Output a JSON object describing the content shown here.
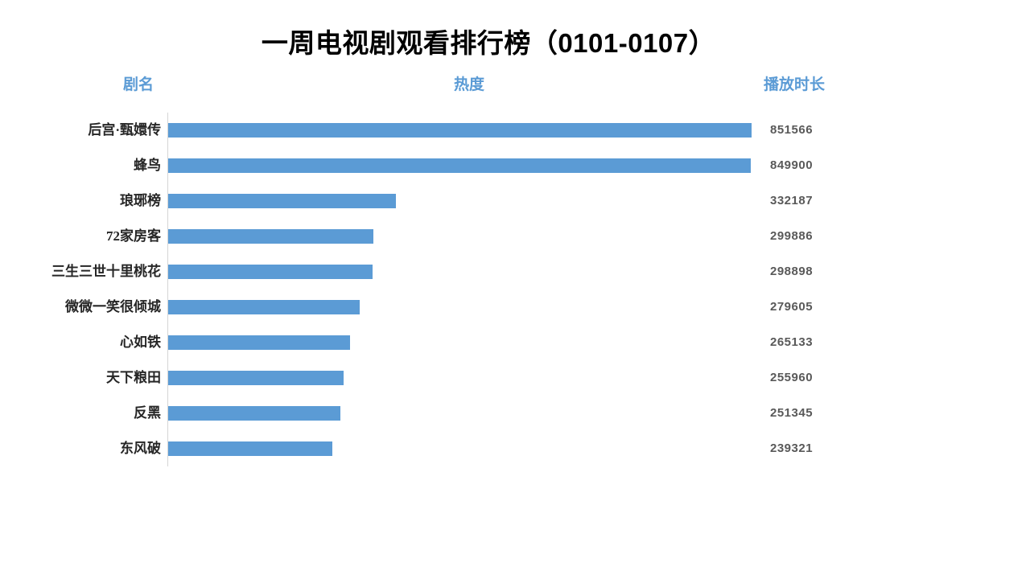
{
  "title": "一周电视剧观看排行榜（0101-0107）",
  "headers": {
    "name": "剧名",
    "heat": "热度",
    "duration": "播放时长"
  },
  "colors": {
    "accent": "#5B9BD5",
    "title_text": "#000000",
    "header_text": "#5B9BD5",
    "label_text": "#262626",
    "value_text": "#595959",
    "axis_line": "#D6D6D6",
    "background": "#FFFFFF"
  },
  "chart_data": {
    "type": "bar",
    "orientation": "horizontal",
    "title": "一周电视剧观看排行榜（0101-0107）",
    "category_column_label": "剧名",
    "series_name": "热度",
    "value_column_label": "播放时长",
    "categories": [
      "后宫·甄嬛传",
      "蜂鸟",
      "琅琊榜",
      "72家房客",
      "三生三世十里桃花",
      "微微一笑很倾城",
      "心如铁",
      "天下粮田",
      "反黑",
      "东风破"
    ],
    "values": [
      851566,
      849900,
      332187,
      299886,
      298898,
      279605,
      265133,
      255960,
      251345,
      239321
    ],
    "xlim": [
      0,
      851566
    ],
    "grid": false,
    "legend": "none",
    "bar_color": "#5B9BD5"
  }
}
